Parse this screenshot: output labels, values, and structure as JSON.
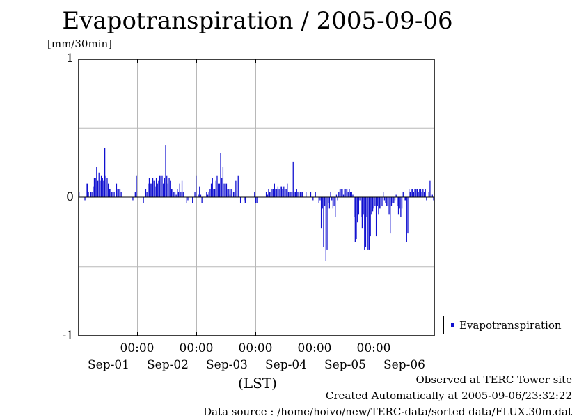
{
  "chart_data": {
    "type": "bar",
    "title": "Evapotranspiration / 2005-09-06",
    "ylabel": "[mm/30min]",
    "xlabel": "(LST)",
    "ylim": [
      -1,
      1
    ],
    "yticks": [
      "1",
      "0",
      "-1"
    ],
    "x_time_labels": [
      "00:00",
      "00:00",
      "00:00",
      "00:00",
      "00:00"
    ],
    "x_date_labels": [
      "Sep-01",
      "Sep-02",
      "Sep-03",
      "Sep-04",
      "Sep-05",
      "Sep-06"
    ],
    "grid": true,
    "legend_position": "right",
    "series": [
      {
        "name": "Evapotranspiration",
        "color": "#1010d0",
        "interval": "30min",
        "values": [
          0.04,
          0,
          0,
          0,
          0,
          -0.02,
          0.1,
          0.1,
          0.04,
          0,
          0.04,
          0.04,
          0.08,
          0.14,
          0.14,
          0.22,
          0.12,
          0.18,
          0.12,
          0.16,
          0.14,
          0.12,
          0.36,
          0.16,
          0.14,
          0.1,
          0.06,
          0.06,
          0.04,
          0.04,
          0.04,
          0,
          0.1,
          0.06,
          0.06,
          0.06,
          0.04,
          0,
          0,
          0,
          0,
          0,
          0,
          0,
          0,
          0,
          -0.02,
          0,
          0.04,
          0.16,
          0,
          0,
          0,
          0,
          0,
          -0.04,
          0,
          0.06,
          0.04,
          0.1,
          0.14,
          0.1,
          0.1,
          0.14,
          0.12,
          0.08,
          0.14,
          0.1,
          0.12,
          0.16,
          0.16,
          0.16,
          0.1,
          0.14,
          0.38,
          0.16,
          0.1,
          0.14,
          0.12,
          0.06,
          0.06,
          0.04,
          0.04,
          0.02,
          0.06,
          0.04,
          0.1,
          0.04,
          0.12,
          0.04,
          0,
          0,
          -0.04,
          -0.02,
          0,
          0,
          0,
          -0.04,
          0,
          0.04,
          0.16,
          0,
          0.02,
          0.08,
          0.02,
          -0.04,
          0,
          0,
          0,
          0.04,
          0.02,
          0.04,
          0.06,
          0.1,
          0.14,
          0.06,
          0.06,
          0.12,
          0.16,
          0.1,
          0.1,
          0.32,
          0.14,
          0.22,
          0.1,
          0.1,
          0.1,
          0.06,
          0.06,
          0.02,
          0.06,
          0,
          0.04,
          0.04,
          0.12,
          0,
          0.16,
          0,
          -0.04,
          0,
          0,
          -0.02,
          -0.04,
          0,
          0,
          0,
          0,
          0,
          0,
          0,
          0.04,
          -0.04,
          -0.04,
          0,
          0,
          0,
          0,
          0,
          0,
          0,
          0.04,
          0.02,
          0.06,
          0.04,
          0.04,
          0.06,
          0.06,
          0.1,
          0.06,
          0.06,
          0.08,
          0.06,
          0.08,
          0.08,
          0.06,
          0.08,
          0.06,
          0.06,
          0.1,
          0.04,
          0.04,
          0.04,
          0.04,
          0.26,
          0.04,
          0.04,
          0.06,
          0.04,
          0,
          0.04,
          0.04,
          0.04,
          0,
          0,
          0.04,
          0,
          0,
          0,
          0.04,
          0,
          -0.02,
          0,
          0.04,
          0,
          0,
          -0.04,
          -0.02,
          -0.22,
          -0.08,
          -0.36,
          -0.06,
          -0.46,
          -0.38,
          -0.04,
          -0.08,
          0.04,
          -0.02,
          -0.08,
          -0.06,
          -0.14,
          0.02,
          -0.02,
          0.04,
          0.06,
          0.06,
          0.06,
          0.02,
          0.06,
          0.06,
          0.06,
          0.04,
          0.06,
          0.04,
          0.04,
          0.02,
          -0.14,
          -0.32,
          -0.3,
          -0.18,
          -0.12,
          -0.02,
          -0.14,
          -0.22,
          -0.12,
          -0.38,
          -0.36,
          -0.14,
          -0.38,
          -0.38,
          -0.28,
          -0.12,
          -0.1,
          -0.08,
          -0.06,
          -0.28,
          -0.06,
          -0.12,
          -0.08,
          -0.08,
          -0.06,
          0.04,
          -0.02,
          -0.04,
          -0.06,
          -0.06,
          -0.12,
          -0.26,
          -0.06,
          -0.04,
          -0.04,
          -0.02,
          0.02,
          -0.06,
          -0.12,
          -0.08,
          -0.14,
          -0.08,
          0.04,
          -0.02,
          -0.02,
          -0.32,
          -0.26,
          0.06,
          0.04,
          0.06,
          0.06,
          0.04,
          0.06,
          0.06,
          0.06,
          0.04,
          0.06,
          0.06,
          0.04,
          0.06,
          0.04,
          0.06,
          -0.02,
          0,
          0.04,
          0.12,
          0,
          0.02,
          -0.02
        ]
      }
    ]
  },
  "footer": {
    "observed": "Observed at TERC Tower site",
    "created": "Created Automatically at 2005-09-06/23:32:22",
    "source": "Data source : /home/hoivo/new/TERC-data/sorted  data/FLUX.30m.dat"
  }
}
